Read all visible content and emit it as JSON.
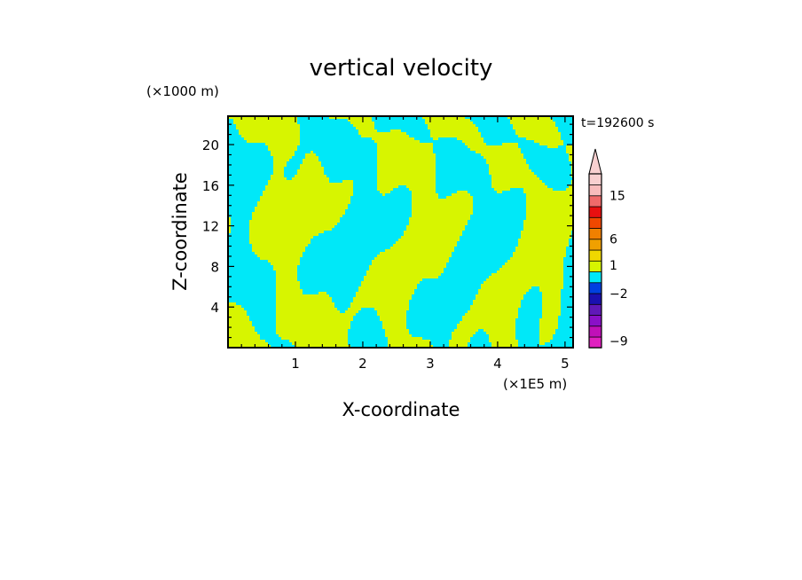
{
  "chart_data": {
    "type": "heatmap",
    "title": "vertical velocity",
    "xlabel": "X-coordinate",
    "ylabel": "Z-coordinate",
    "x_unit": "(×1E5 m)",
    "y_unit": "(×1000 m)",
    "time_label": "t=192600 s",
    "xlim": [
      0,
      5.12
    ],
    "ylim": [
      0,
      22.8
    ],
    "x_ticks": [
      1,
      2,
      3,
      4,
      5
    ],
    "y_ticks": [
      4,
      8,
      12,
      16,
      20
    ],
    "x_tick_labels": [
      "1",
      "2",
      "3",
      "4",
      "5"
    ],
    "y_tick_labels": [
      "4",
      "8",
      "12",
      "16",
      "20"
    ],
    "field_colors": {
      "positive": "#d7f500",
      "negative": "#00e8f8"
    },
    "colorbar": {
      "extend": "max",
      "levels": [
        {
          "color": "#e020c0"
        },
        {
          "color": "#c010b8"
        },
        {
          "color": "#8a10c8"
        },
        {
          "color": "#6018b8"
        },
        {
          "color": "#1a10b0"
        },
        {
          "color": "#0040e0"
        },
        {
          "color": "#00e8f8"
        },
        {
          "color": "#d7f500"
        },
        {
          "color": "#f0d800"
        },
        {
          "color": "#f0a000"
        },
        {
          "color": "#f08000"
        },
        {
          "color": "#f04800"
        },
        {
          "color": "#e81010"
        },
        {
          "color": "#f06a6a"
        },
        {
          "color": "#f8bcbc"
        },
        {
          "color": "#f8d0d0"
        }
      ],
      "tick_labels": [
        {
          "label": "15",
          "level": 14
        },
        {
          "label": "6",
          "level": 10
        },
        {
          "label": "1",
          "level": 7.6
        },
        {
          "label": "−2",
          "level": 5
        },
        {
          "label": "−9",
          "level": 0.6
        }
      ]
    }
  }
}
